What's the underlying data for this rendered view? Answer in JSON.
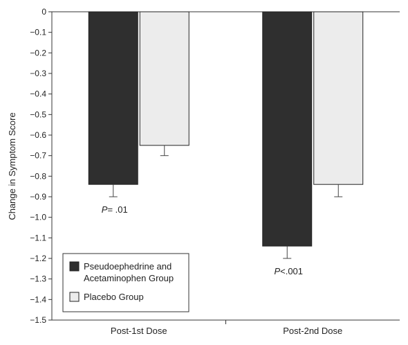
{
  "chart_data": {
    "type": "bar",
    "categories": [
      "Post-1st Dose",
      "Post-2nd Dose"
    ],
    "series": [
      {
        "name": "Pseudoephedrine and Acetaminophen Group",
        "values": [
          -0.84,
          -1.14
        ],
        "errors": [
          0.06,
          0.06
        ],
        "color": "#2f2f2f"
      },
      {
        "name": "Placebo Group",
        "values": [
          -0.65,
          -0.84
        ],
        "errors": [
          0.05,
          0.06
        ],
        "color": "#ececec"
      }
    ],
    "title": "",
    "xlabel": "",
    "ylabel": "Change in Symptom Score",
    "ylim": [
      -1.5,
      0
    ],
    "yticks": [
      0,
      -0.1,
      -0.2,
      -0.3,
      -0.4,
      -0.5,
      -0.6,
      -0.7,
      -0.8,
      -0.9,
      -1.0,
      -1.1,
      -1.2,
      -1.3,
      -1.4,
      -1.5
    ],
    "ytick_labels": [
      "0",
      "−0.1",
      "−0.2",
      "−0.3",
      "−0.4",
      "−0.5",
      "−0.6",
      "−0.7",
      "−0.8",
      "−0.9",
      "−1.0",
      "−1.1",
      "−1.2",
      "−1.3",
      "−1.4",
      "−1.5"
    ],
    "grid": false,
    "legend_position": "bottom-left",
    "annotations": [
      {
        "category": 0,
        "prefix": "P",
        "text": "= .01"
      },
      {
        "category": 1,
        "prefix": "P",
        "text": "<.001"
      }
    ]
  }
}
